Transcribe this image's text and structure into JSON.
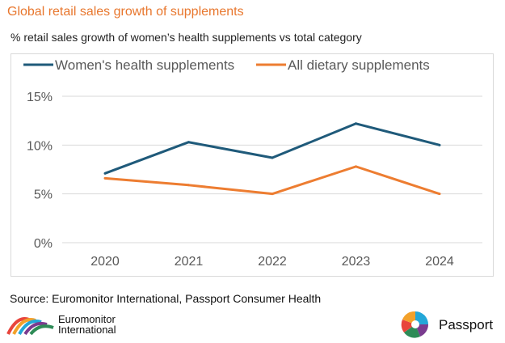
{
  "header": {
    "title": "Global retail sales growth of supplements",
    "subtitle": "% retail sales growth of women’s health supplements vs total category"
  },
  "chart_data": {
    "type": "line",
    "title": "Global retail sales growth of supplements",
    "subtitle": "% retail sales growth of women’s health supplements vs total category",
    "xlabel": "",
    "ylabel": "",
    "categories": [
      "2020",
      "2021",
      "2022",
      "2023",
      "2024"
    ],
    "ylim": [
      0,
      15
    ],
    "yticks": [
      0,
      5,
      10,
      15
    ],
    "ytick_labels": [
      "0%",
      "5%",
      "10%",
      "15%"
    ],
    "grid": true,
    "legend_position": "top",
    "series": [
      {
        "name": "Women's health supplements",
        "color": "#1f5a7a",
        "values": [
          7.1,
          10.3,
          8.7,
          12.2,
          10.0
        ]
      },
      {
        "name": "All dietary supplements",
        "color": "#ed7d31",
        "values": [
          6.6,
          5.9,
          5.0,
          7.8,
          5.0
        ]
      }
    ]
  },
  "footer": {
    "source": "Source: Euromonitor International, Passport Consumer Health",
    "brand_left_line1": "Euromonitor",
    "brand_left_line2": "International",
    "brand_right": "Passport"
  }
}
